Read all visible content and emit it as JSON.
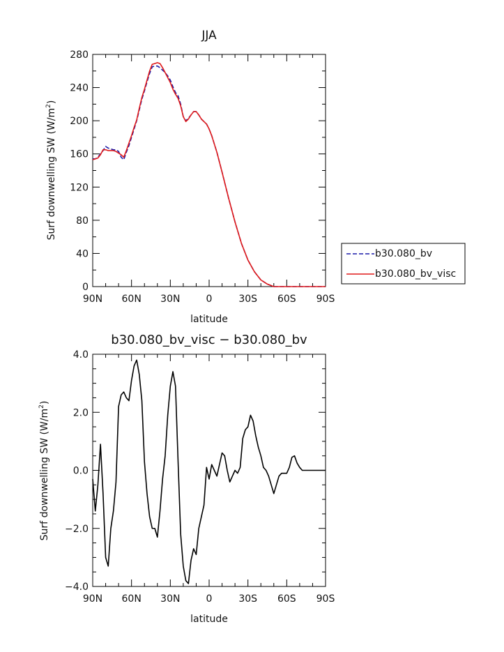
{
  "chart_data": [
    {
      "type": "line",
      "title": "JJA",
      "xlabel": "latitude",
      "ylabel": "Surf downwelling SW (W/m",
      "ylabel_sup": "2",
      "ylabel_close": ")",
      "xlim": [
        90,
        -90
      ],
      "ylim": [
        0,
        280
      ],
      "x_ticks": [
        {
          "value": 90,
          "label": "90N"
        },
        {
          "value": 60,
          "label": "60N"
        },
        {
          "value": 30,
          "label": "30N"
        },
        {
          "value": 0,
          "label": "0"
        },
        {
          "value": -30,
          "label": "30S"
        },
        {
          "value": -60,
          "label": "60S"
        },
        {
          "value": -90,
          "label": "90S"
        }
      ],
      "y_ticks": [
        {
          "value": 0,
          "label": "0"
        },
        {
          "value": 40,
          "label": "40"
        },
        {
          "value": 80,
          "label": "80"
        },
        {
          "value": 120,
          "label": "120"
        },
        {
          "value": 160,
          "label": "160"
        },
        {
          "value": 200,
          "label": "200"
        },
        {
          "value": 240,
          "label": "240"
        },
        {
          "value": 280,
          "label": "280"
        }
      ],
      "legend_placement": "right",
      "series": [
        {
          "name": "b30.080_bv",
          "color": "#1a1aa8",
          "dash": true,
          "x": [
            90,
            88,
            86,
            84,
            82,
            80,
            78,
            76,
            74,
            72,
            70,
            68,
            66,
            64,
            62,
            60,
            58,
            56,
            54,
            52,
            50,
            48,
            46,
            44,
            42,
            40,
            38,
            36,
            34,
            32,
            30,
            28,
            26,
            24,
            22,
            20,
            18,
            16,
            14,
            12,
            10,
            8,
            6,
            4,
            2,
            0,
            -2,
            -4,
            -6,
            -8,
            -10,
            -15,
            -20,
            -25,
            -30,
            -35,
            -40,
            -45,
            -50,
            -55,
            -60,
            -65,
            -70,
            -75,
            -80,
            -85,
            -90
          ],
          "values": [
            154,
            154,
            156,
            160,
            164,
            169,
            167,
            166,
            165,
            165,
            163,
            156,
            153,
            162,
            170,
            180,
            190,
            200,
            213,
            226,
            236,
            247,
            257,
            265,
            266,
            266,
            264,
            261,
            258,
            254,
            249,
            241,
            234,
            230,
            220,
            205,
            200,
            203,
            207,
            211,
            211,
            207,
            202,
            199,
            196,
            190,
            182,
            172,
            162,
            150,
            138,
            107,
            78,
            52,
            32,
            18,
            8,
            3,
            0,
            0,
            0,
            0,
            0,
            0,
            0,
            0,
            0
          ]
        },
        {
          "name": "b30.080_bv_visc",
          "color": "#e01818",
          "dash": false,
          "x": [
            90,
            88,
            86,
            84,
            82,
            80,
            78,
            76,
            74,
            72,
            70,
            68,
            66,
            64,
            62,
            60,
            58,
            56,
            54,
            52,
            50,
            48,
            46,
            44,
            42,
            40,
            38,
            36,
            34,
            32,
            30,
            28,
            26,
            24,
            22,
            20,
            18,
            16,
            14,
            12,
            10,
            8,
            6,
            4,
            2,
            0,
            -2,
            -4,
            -6,
            -8,
            -10,
            -15,
            -20,
            -25,
            -30,
            -35,
            -40,
            -45,
            -50,
            -55,
            -60,
            -65,
            -70,
            -75,
            -80,
            -85,
            -90
          ],
          "values": [
            153,
            154,
            155,
            159,
            165,
            165,
            164,
            164,
            164,
            163,
            161,
            159,
            156,
            164,
            173,
            182,
            192,
            201,
            215,
            228,
            238,
            249,
            260,
            268,
            269,
            270,
            269,
            264,
            258,
            252,
            246,
            238,
            232,
            227,
            218,
            205,
            199,
            202,
            207,
            211,
            211,
            207,
            202,
            199,
            196,
            190,
            182,
            172,
            162,
            150,
            138,
            107,
            78,
            52,
            32,
            18,
            8,
            3,
            0,
            0,
            0,
            0,
            0,
            0,
            0,
            0,
            0
          ]
        }
      ]
    },
    {
      "type": "line",
      "title": "b30.080_bv_visc − b30.080_bv",
      "xlabel": "latitude",
      "ylabel": "Surf downwelling SW (W/m",
      "ylabel_sup": "2",
      "ylabel_close": ")",
      "xlim": [
        90,
        -90
      ],
      "ylim": [
        -4,
        4
      ],
      "x_ticks": [
        {
          "value": 90,
          "label": "90N"
        },
        {
          "value": 60,
          "label": "60N"
        },
        {
          "value": 30,
          "label": "30N"
        },
        {
          "value": 0,
          "label": "0"
        },
        {
          "value": -30,
          "label": "30S"
        },
        {
          "value": -60,
          "label": "60S"
        },
        {
          "value": -90,
          "label": "90S"
        }
      ],
      "y_ticks": [
        {
          "value": -4,
          "label": "−4.0"
        },
        {
          "value": -2,
          "label": "−2.0"
        },
        {
          "value": 0,
          "label": "0.0"
        },
        {
          "value": 2,
          "label": "2.0"
        },
        {
          "value": 4,
          "label": "4.0"
        }
      ],
      "series": [
        {
          "color": "#000000",
          "x": [
            90,
            88,
            86,
            84,
            82,
            80,
            78,
            76,
            74,
            72,
            70,
            68,
            66,
            64,
            62,
            60,
            58,
            56,
            54,
            52,
            50,
            48,
            46,
            44,
            42,
            40,
            38,
            36,
            34,
            32,
            30,
            28,
            26,
            24,
            22,
            20,
            18,
            16,
            14,
            12,
            10,
            8,
            6,
            4,
            2,
            0,
            -2,
            -4,
            -6,
            -8,
            -10,
            -12,
            -14,
            -16,
            -18,
            -20,
            -22,
            -24,
            -26,
            -28,
            -30,
            -32,
            -34,
            -36,
            -38,
            -40,
            -42,
            -44,
            -46,
            -48,
            -50,
            -52,
            -54,
            -56,
            -58,
            -60,
            -62,
            -64,
            -66,
            -68,
            -70,
            -72,
            -74,
            -76,
            -78,
            -80,
            -82,
            -84,
            -86,
            -88,
            -90
          ],
          "values": [
            -0.3,
            -1.4,
            -0.5,
            0.9,
            -0.8,
            -3.0,
            -3.3,
            -2.0,
            -1.4,
            -0.4,
            2.2,
            2.6,
            2.7,
            2.5,
            2.4,
            3.1,
            3.6,
            3.8,
            3.3,
            2.4,
            0.3,
            -0.8,
            -1.6,
            -2.0,
            -2.0,
            -2.3,
            -1.4,
            -0.3,
            0.5,
            1.9,
            2.9,
            3.4,
            2.9,
            0.3,
            -2.2,
            -3.3,
            -3.8,
            -3.9,
            -3.1,
            -2.7,
            -2.9,
            -2.0,
            -1.6,
            -1.2,
            0.1,
            -0.3,
            0.2,
            0.0,
            -0.2,
            0.2,
            0.6,
            0.5,
            0.0,
            -0.4,
            -0.2,
            0.0,
            -0.1,
            0.1,
            1.1,
            1.4,
            1.5,
            1.9,
            1.7,
            1.2,
            0.8,
            0.5,
            0.1,
            0.0,
            -0.2,
            -0.5,
            -0.8,
            -0.5,
            -0.2,
            -0.1,
            -0.1,
            -0.1,
            0.1,
            0.45,
            0.5,
            0.25,
            0.1,
            0.0,
            0.0,
            0.0,
            0.0,
            0.0,
            0.0,
            0.0,
            0.0,
            0.0,
            0.0
          ]
        }
      ]
    }
  ]
}
